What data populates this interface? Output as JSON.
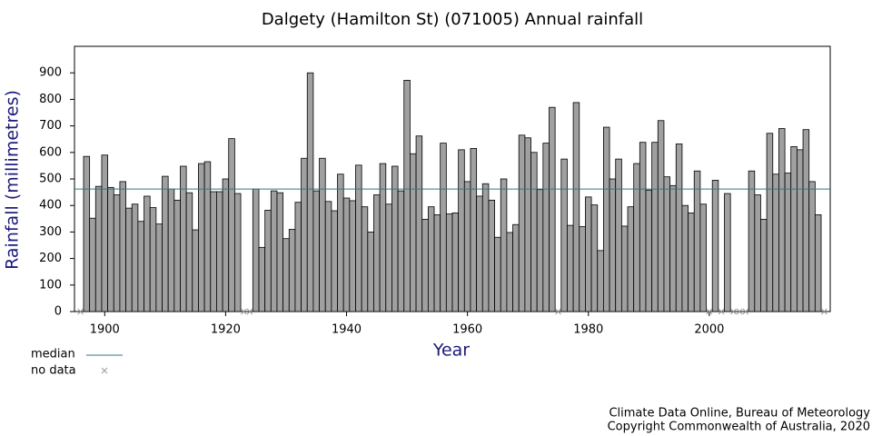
{
  "chart_data": {
    "type": "bar",
    "title": "Dalgety (Hamilton St) (071005) Annual rainfall",
    "xlabel": "Year",
    "ylabel": "Rainfall (millimetres)",
    "x": [
      1896,
      1897,
      1898,
      1899,
      1900,
      1901,
      1902,
      1903,
      1904,
      1905,
      1906,
      1907,
      1908,
      1909,
      1910,
      1911,
      1912,
      1913,
      1914,
      1915,
      1916,
      1917,
      1918,
      1919,
      1920,
      1921,
      1922,
      1923,
      1924,
      1925,
      1926,
      1927,
      1928,
      1929,
      1930,
      1931,
      1932,
      1933,
      1934,
      1935,
      1936,
      1937,
      1938,
      1939,
      1940,
      1941,
      1942,
      1943,
      1944,
      1945,
      1946,
      1947,
      1948,
      1949,
      1950,
      1951,
      1952,
      1953,
      1954,
      1955,
      1956,
      1957,
      1958,
      1959,
      1960,
      1961,
      1962,
      1963,
      1964,
      1965,
      1966,
      1967,
      1968,
      1969,
      1970,
      1971,
      1972,
      1973,
      1974,
      1975,
      1976,
      1977,
      1978,
      1979,
      1980,
      1981,
      1982,
      1983,
      1984,
      1985,
      1986,
      1987,
      1988,
      1989,
      1990,
      1991,
      1992,
      1993,
      1994,
      1995,
      1996,
      1997,
      1998,
      1999,
      2000,
      2001,
      2002,
      2003,
      2004,
      2005,
      2006,
      2007,
      2008,
      2009,
      2010,
      2011,
      2012,
      2013,
      2014,
      2015,
      2016,
      2017,
      2018,
      2019
    ],
    "values": [
      null,
      585,
      352,
      472,
      590,
      468,
      440,
      490,
      390,
      405,
      340,
      435,
      392,
      330,
      510,
      462,
      420,
      548,
      448,
      308,
      558,
      565,
      452,
      452,
      500,
      652,
      445,
      null,
      null,
      462,
      242,
      382,
      455,
      448,
      275,
      310,
      412,
      578,
      900,
      455,
      578,
      415,
      380,
      518,
      428,
      418,
      552,
      395,
      300,
      440,
      558,
      405,
      548,
      455,
      872,
      595,
      662,
      348,
      395,
      365,
      635,
      368,
      372,
      610,
      490,
      615,
      435,
      482,
      420,
      280,
      500,
      298,
      328,
      665,
      655,
      600,
      460,
      635,
      770,
      null,
      575,
      325,
      788,
      320,
      432,
      402,
      230,
      695,
      500,
      575,
      322,
      395,
      558,
      638,
      458,
      638,
      720,
      508,
      475,
      632,
      400,
      372,
      530,
      405,
      null,
      495,
      null,
      445,
      null,
      null,
      null,
      530,
      440,
      348,
      672,
      518,
      690,
      522,
      622,
      610,
      686,
      490,
      365,
      null
    ],
    "color": "#a0a0a0",
    "median": {
      "name": "median",
      "value": 462,
      "color": "#2a7a8a"
    },
    "no_data_label": "no data",
    "xlim": [
      1895,
      2020
    ],
    "xticks": [
      1900,
      1920,
      1940,
      1960,
      1980,
      2000
    ],
    "ylim": [
      0,
      1000
    ],
    "yticks": [
      0,
      100,
      200,
      300,
      400,
      500,
      600,
      700,
      800,
      900
    ],
    "footer": [
      "Climate Data Online, Bureau of Meteorology",
      "Copyright Commonwealth of Australia, 2020"
    ]
  }
}
